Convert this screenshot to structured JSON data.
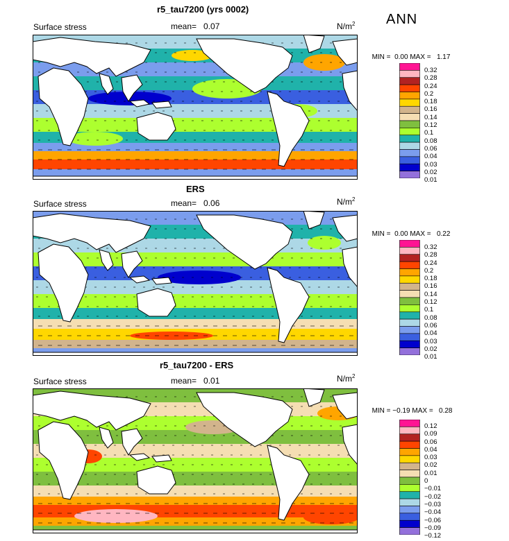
{
  "season": "ANN",
  "units": "N/m",
  "units_exp": "2",
  "mean_label": "mean=",
  "min_label": "MIN =",
  "max_label": "MAX =",
  "colors": {
    "c0": "#9370db",
    "c1": "#0000cd",
    "c2": "#3a5fe0",
    "c3": "#7b9ded",
    "c4": "#add8e6",
    "c5": "#20b2aa",
    "c6": "#adff2f",
    "c7": "#7fbf3f",
    "c8": "#f5deb3",
    "c9": "#d2b48c",
    "c10": "#ffd700",
    "c11": "#ffa500",
    "c12": "#ff4500",
    "c13": "#b22222",
    "c14": "#ffb6c1",
    "c15": "#ff1493"
  },
  "panels": [
    {
      "title": "r5_tau7200 (yrs 0002)",
      "field": "Surface stress",
      "mean": "0.07",
      "min": "0.00",
      "max": "1.17",
      "levels": [
        "0.32",
        "0.28",
        "0.24",
        "0.2",
        "0.18",
        "0.16",
        "0.14",
        "0.12",
        "0.1",
        "0.08",
        "0.06",
        "0.04",
        "0.03",
        "0.02",
        "0.01"
      ]
    },
    {
      "title": "ERS",
      "field": "Surface stress",
      "mean": "0.06",
      "min": "0.00",
      "max": "0.22",
      "levels": [
        "0.32",
        "0.28",
        "0.24",
        "0.2",
        "0.18",
        "0.16",
        "0.14",
        "0.12",
        "0.1",
        "0.08",
        "0.06",
        "0.04",
        "0.03",
        "0.02",
        "0.01"
      ]
    },
    {
      "title": "r5_tau7200 - ERS",
      "field": "Surface stress",
      "mean": "0.01",
      "min": "−0.19",
      "max": "0.28",
      "levels": [
        "0.12",
        "0.09",
        "0.06",
        "0.04",
        "0.03",
        "0.02",
        "0.01",
        "0",
        "−0.01",
        "−0.02",
        "−0.03",
        "−0.04",
        "−0.06",
        "−0.09",
        "−0.12"
      ]
    }
  ]
}
